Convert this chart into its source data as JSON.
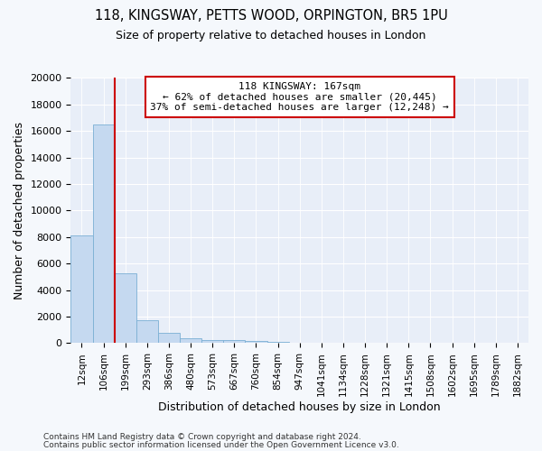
{
  "title_line1": "118, KINGSWAY, PETTS WOOD, ORPINGTON, BR5 1PU",
  "title_line2": "Size of property relative to detached houses in London",
  "xlabel": "Distribution of detached houses by size in London",
  "ylabel": "Number of detached properties",
  "bar_categories": [
    "12sqm",
    "106sqm",
    "199sqm",
    "293sqm",
    "386sqm",
    "480sqm",
    "573sqm",
    "667sqm",
    "760sqm",
    "854sqm",
    "947sqm",
    "1041sqm",
    "1134sqm",
    "1228sqm",
    "1321sqm",
    "1415sqm",
    "1508sqm",
    "1602sqm",
    "1695sqm",
    "1789sqm",
    "1882sqm"
  ],
  "bar_values": [
    8100,
    16500,
    5300,
    1750,
    750,
    350,
    270,
    230,
    160,
    130,
    0,
    0,
    0,
    0,
    0,
    0,
    0,
    0,
    0,
    0,
    0
  ],
  "bar_color": "#c5d9f0",
  "bar_edge_color": "#7bafd4",
  "vline_color": "#cc0000",
  "annotation_title": "118 KINGSWAY: 167sqm",
  "annotation_line1": "← 62% of detached houses are smaller (20,445)",
  "annotation_line2": "37% of semi-detached houses are larger (12,248) →",
  "annotation_box_facecolor": "#ffffff",
  "annotation_box_edgecolor": "#cc0000",
  "ylim": [
    0,
    20000
  ],
  "yticks": [
    0,
    2000,
    4000,
    6000,
    8000,
    10000,
    12000,
    14000,
    16000,
    18000,
    20000
  ],
  "fig_facecolor": "#f5f8fc",
  "ax_facecolor": "#e8eef8",
  "grid_color": "#ffffff",
  "footer_line1": "Contains HM Land Registry data © Crown copyright and database right 2024.",
  "footer_line2": "Contains public sector information licensed under the Open Government Licence v3.0."
}
